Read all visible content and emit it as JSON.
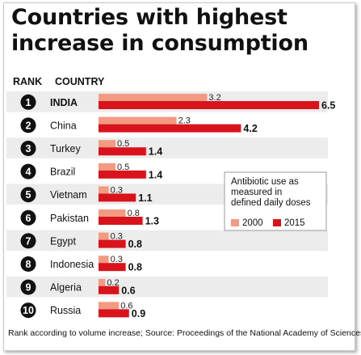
{
  "title_line1": "Countries with highest",
  "title_line2": "increase in consumption",
  "header_rank": "RANK",
  "header_country": "COUNTRY",
  "footnote": "Rank according to volume increase; Source: Proceedings of the National Academy of Sciences",
  "chart_data": {
    "type": "bar",
    "orientation": "horizontal",
    "categories": [
      "INDIA",
      "China",
      "Turkey",
      "Brazil",
      "Vietnam",
      "Pakistan",
      "Egypt",
      "Indonesia",
      "Algeria",
      "Russia"
    ],
    "ranks": [
      "1",
      "2",
      "3",
      "4",
      "5",
      "6",
      "7",
      "8",
      "9",
      "10"
    ],
    "series": [
      {
        "name": "2000",
        "values": [
          3.2,
          2.3,
          0.5,
          0.5,
          0.3,
          0.8,
          0.3,
          0.3,
          0.2,
          0.6
        ],
        "color": "#f29a82"
      },
      {
        "name": "2015",
        "values": [
          6.5,
          4.2,
          1.4,
          1.4,
          1.1,
          1.3,
          0.8,
          0.8,
          0.6,
          0.9
        ],
        "color": "#d8131c"
      }
    ],
    "legend_title": "Antibiotic use as measured in defined daily doses",
    "legend_position": "right",
    "row_stripe_color": "#ececec",
    "rank_badge_color": "#111111"
  }
}
